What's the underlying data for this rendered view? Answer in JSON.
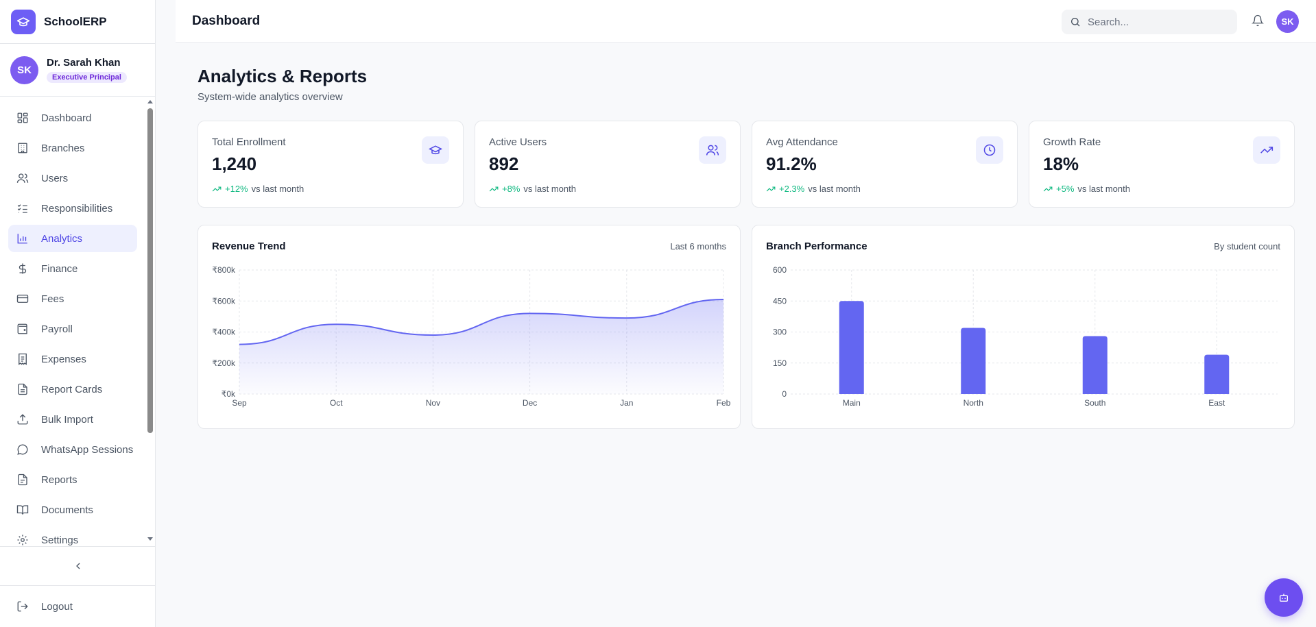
{
  "app": {
    "name": "SchoolERP"
  },
  "user": {
    "name": "Dr. Sarah Khan",
    "role": "Executive Principal",
    "initials": "SK"
  },
  "sidebar": {
    "items": [
      {
        "label": "Dashboard",
        "icon": "dashboard-icon",
        "active": false
      },
      {
        "label": "Branches",
        "icon": "building-icon",
        "active": false
      },
      {
        "label": "Users",
        "icon": "users-icon",
        "active": false
      },
      {
        "label": "Responsibilities",
        "icon": "list-checks-icon",
        "active": false
      },
      {
        "label": "Analytics",
        "icon": "bar-chart-icon",
        "active": true
      },
      {
        "label": "Finance",
        "icon": "dollar-icon",
        "active": false
      },
      {
        "label": "Fees",
        "icon": "credit-card-icon",
        "active": false
      },
      {
        "label": "Payroll",
        "icon": "wallet-icon",
        "active": false
      },
      {
        "label": "Expenses",
        "icon": "receipt-icon",
        "active": false
      },
      {
        "label": "Report Cards",
        "icon": "file-text-icon",
        "active": false
      },
      {
        "label": "Bulk Import",
        "icon": "upload-icon",
        "active": false
      },
      {
        "label": "WhatsApp Sessions",
        "icon": "message-circle-icon",
        "active": false
      },
      {
        "label": "Reports",
        "icon": "file-icon",
        "active": false
      },
      {
        "label": "Documents",
        "icon": "book-icon",
        "active": false
      },
      {
        "label": "Settings",
        "icon": "gear-icon",
        "active": false
      }
    ],
    "logout_label": "Logout"
  },
  "header": {
    "title": "Dashboard",
    "search_placeholder": "Search..."
  },
  "page": {
    "title": "Analytics & Reports",
    "subtitle": "System-wide analytics overview"
  },
  "stats": [
    {
      "label": "Total Enrollment",
      "value": "1,240",
      "delta": "+12%",
      "suffix": "vs last month",
      "icon": "graduation-cap-icon"
    },
    {
      "label": "Active Users",
      "value": "892",
      "delta": "+8%",
      "suffix": "vs last month",
      "icon": "users-icon"
    },
    {
      "label": "Avg Attendance",
      "value": "91.2%",
      "delta": "+2.3%",
      "suffix": "vs last month",
      "icon": "clock-icon"
    },
    {
      "label": "Growth Rate",
      "value": "18%",
      "delta": "+5%",
      "suffix": "vs last month",
      "icon": "trending-up-icon"
    }
  ],
  "colors": {
    "accent": "#6366f1",
    "positive": "#10b981",
    "brand": "#6d5ef5"
  },
  "chart_data": [
    {
      "type": "area",
      "title": "Revenue Trend",
      "meta": "Last 6 months",
      "categories": [
        "Sep",
        "Oct",
        "Nov",
        "Dec",
        "Jan",
        "Feb"
      ],
      "values": [
        320000,
        450000,
        380000,
        520000,
        490000,
        610000
      ],
      "ylim": [
        0,
        800000
      ],
      "yticks": [
        "₹0k",
        "₹200k",
        "₹400k",
        "₹600k",
        "₹800k"
      ],
      "grid": true
    },
    {
      "type": "bar",
      "title": "Branch Performance",
      "meta": "By student count",
      "categories": [
        "Main",
        "North",
        "South",
        "East"
      ],
      "values": [
        450,
        320,
        280,
        190
      ],
      "ylim": [
        0,
        600
      ],
      "yticks": [
        "0",
        "150",
        "300",
        "450",
        "600"
      ],
      "grid": true
    }
  ]
}
